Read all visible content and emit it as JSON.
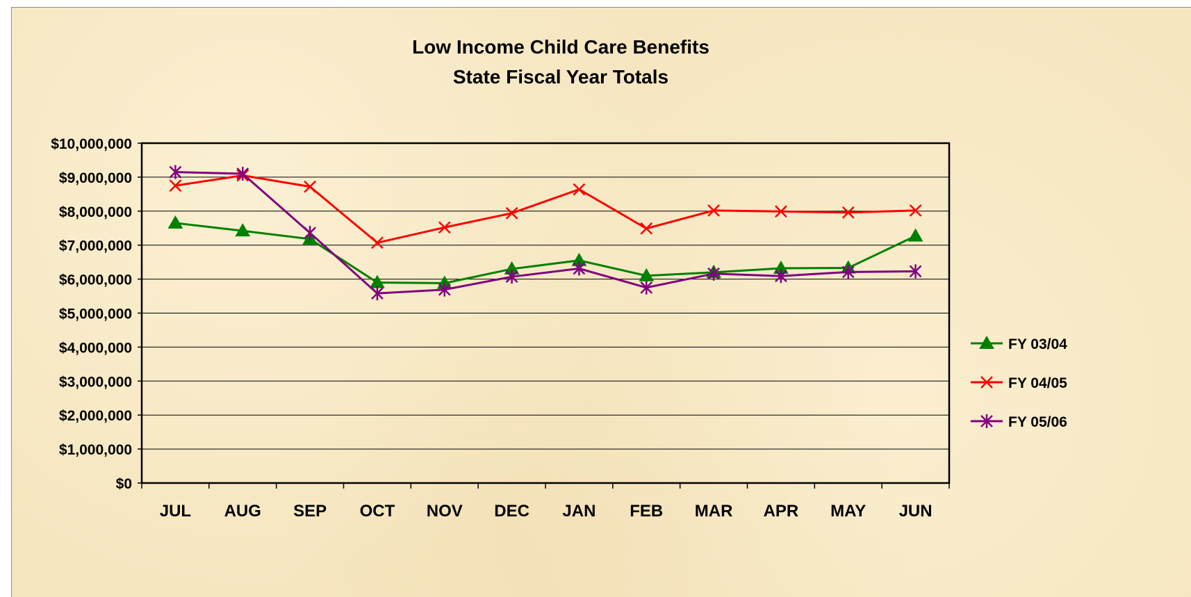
{
  "chart_data": {
    "type": "line",
    "title": [
      "Low Income Child Care Benefits",
      "State Fiscal Year Totals"
    ],
    "categories": [
      "JUL",
      "AUG",
      "SEP",
      "OCT",
      "NOV",
      "DEC",
      "JAN",
      "FEB",
      "MAR",
      "APR",
      "MAY",
      "JUN"
    ],
    "y_ticks": [
      "$0",
      "$1,000,000",
      "$2,000,000",
      "$3,000,000",
      "$4,000,000",
      "$5,000,000",
      "$6,000,000",
      "$7,000,000",
      "$8,000,000",
      "$9,000,000",
      "$10,000,000"
    ],
    "ylim": [
      0,
      10000000
    ],
    "grid": true,
    "legend_position": "right",
    "series": [
      {
        "name": "FY 03/04",
        "color": "#008000",
        "marker": "triangle",
        "values": [
          7650000,
          7420000,
          7180000,
          5900000,
          5880000,
          6300000,
          6550000,
          6100000,
          6200000,
          6320000,
          6330000,
          7270000
        ]
      },
      {
        "name": "FY 04/05",
        "color": "#ff0000",
        "marker": "x",
        "values": [
          8750000,
          9050000,
          8720000,
          7070000,
          7520000,
          7940000,
          8640000,
          7490000,
          8020000,
          7990000,
          7960000,
          8020000
        ]
      },
      {
        "name": "FY 05/06",
        "color": "#800080",
        "marker": "asterisk",
        "values": [
          9150000,
          9100000,
          7360000,
          5580000,
          5690000,
          6070000,
          6310000,
          5750000,
          6160000,
          6090000,
          6210000,
          6230000
        ]
      }
    ]
  }
}
